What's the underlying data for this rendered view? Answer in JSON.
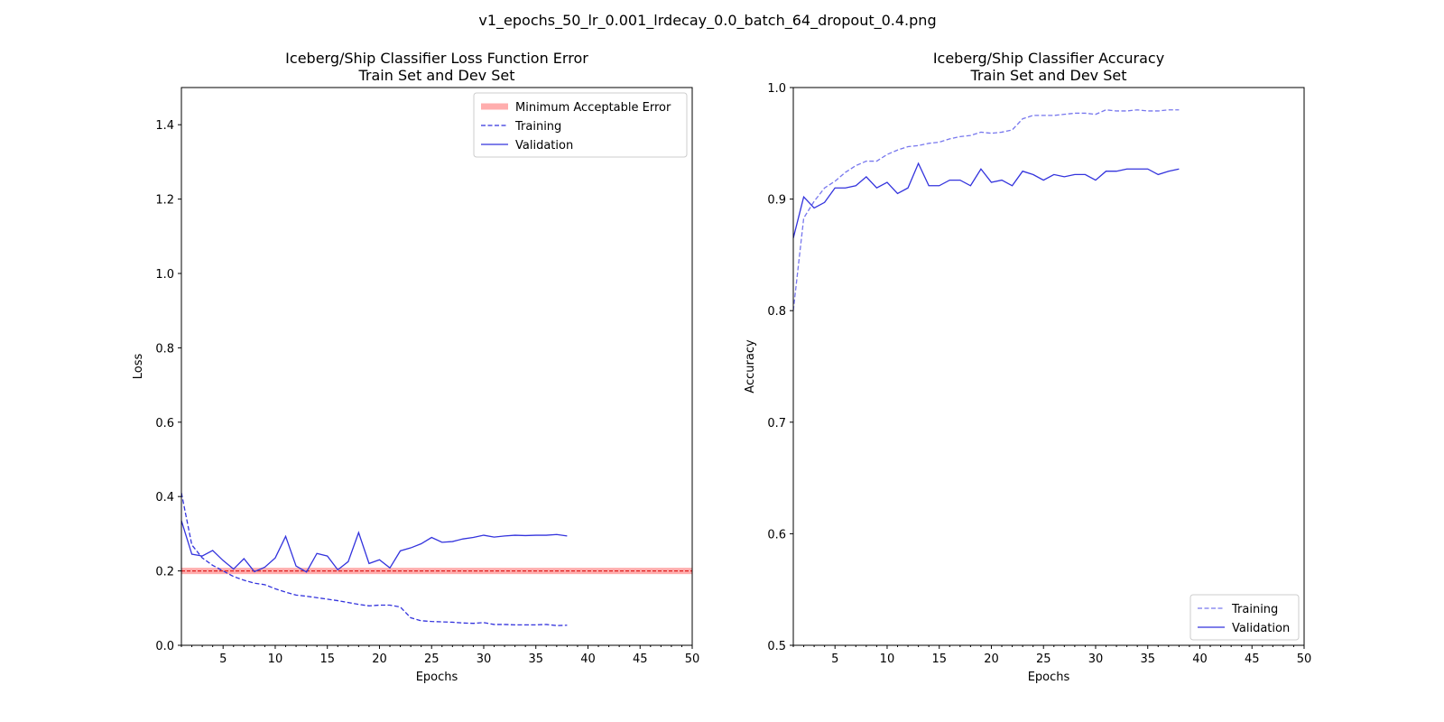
{
  "figure": {
    "suptitle": "v1_epochs_50_lr_0.001_lrdecay_0.0_batch_64_dropout_0.4.png"
  },
  "chart_data": [
    {
      "type": "line",
      "title": "Iceberg/Ship Classifier Loss Function Error",
      "subtitle": "Train Set and Dev Set",
      "xlabel": "Epochs",
      "ylabel": "Loss",
      "xlim": [
        1,
        50
      ],
      "ylim": [
        0,
        1.5
      ],
      "xticks": [
        5,
        10,
        15,
        20,
        25,
        30,
        35,
        40,
        45,
        50
      ],
      "yticks": [
        0.0,
        0.2,
        0.4,
        0.6,
        0.8,
        1.0,
        1.2,
        1.4
      ],
      "grid": false,
      "legend_position": "top-right",
      "hline": {
        "name": "Minimum Acceptable Error",
        "y": 0.2,
        "color": "#ff9999"
      },
      "x": [
        1,
        2,
        3,
        4,
        5,
        6,
        7,
        8,
        9,
        10,
        11,
        12,
        13,
        14,
        15,
        16,
        17,
        18,
        19,
        20,
        21,
        22,
        23,
        24,
        25,
        26,
        27,
        28,
        29,
        30,
        31,
        32,
        33,
        34,
        35,
        36,
        37,
        38
      ],
      "series": [
        {
          "name": "Training",
          "style": "dashed",
          "color": "#3333dd",
          "values": [
            0.41,
            0.27,
            0.235,
            0.215,
            0.2,
            0.185,
            0.175,
            0.167,
            0.163,
            0.152,
            0.143,
            0.135,
            0.132,
            0.128,
            0.124,
            0.12,
            0.115,
            0.11,
            0.106,
            0.108,
            0.108,
            0.103,
            0.074,
            0.066,
            0.064,
            0.063,
            0.062,
            0.06,
            0.059,
            0.061,
            0.056,
            0.056,
            0.055,
            0.055,
            0.055,
            0.056,
            0.053,
            0.054
          ]
        },
        {
          "name": "Validation",
          "style": "solid",
          "color": "#3333dd",
          "values": [
            0.335,
            0.245,
            0.24,
            0.255,
            0.228,
            0.205,
            0.233,
            0.198,
            0.21,
            0.235,
            0.293,
            0.213,
            0.197,
            0.247,
            0.24,
            0.203,
            0.225,
            0.303,
            0.22,
            0.23,
            0.208,
            0.254,
            0.262,
            0.273,
            0.29,
            0.277,
            0.279,
            0.286,
            0.29,
            0.296,
            0.291,
            0.294,
            0.296,
            0.295,
            0.296,
            0.296,
            0.298,
            0.294
          ]
        }
      ]
    },
    {
      "type": "line",
      "title": "Iceberg/Ship Classifier Accuracy",
      "subtitle": "Train Set and Dev Set",
      "xlabel": "Epochs",
      "ylabel": "Accuracy",
      "xlim": [
        1,
        50
      ],
      "ylim": [
        0.5,
        1.0
      ],
      "xticks": [
        5,
        10,
        15,
        20,
        25,
        30,
        35,
        40,
        45,
        50
      ],
      "yticks": [
        0.5,
        0.6,
        0.7,
        0.8,
        0.9,
        1.0
      ],
      "grid": false,
      "legend_position": "bottom-right",
      "x": [
        1,
        2,
        3,
        4,
        5,
        6,
        7,
        8,
        9,
        10,
        11,
        12,
        13,
        14,
        15,
        16,
        17,
        18,
        19,
        20,
        21,
        22,
        23,
        24,
        25,
        26,
        27,
        28,
        29,
        30,
        31,
        32,
        33,
        34,
        35,
        36,
        37,
        38
      ],
      "series": [
        {
          "name": "Training",
          "style": "dashed",
          "color": "#7777ee",
          "values": [
            0.8,
            0.883,
            0.898,
            0.91,
            0.916,
            0.924,
            0.93,
            0.934,
            0.934,
            0.94,
            0.944,
            0.947,
            0.948,
            0.95,
            0.951,
            0.954,
            0.956,
            0.957,
            0.96,
            0.959,
            0.96,
            0.962,
            0.972,
            0.975,
            0.975,
            0.975,
            0.976,
            0.977,
            0.977,
            0.976,
            0.98,
            0.979,
            0.979,
            0.98,
            0.979,
            0.979,
            0.98,
            0.98
          ]
        },
        {
          "name": "Validation",
          "style": "solid",
          "color": "#3333dd",
          "values": [
            0.865,
            0.902,
            0.892,
            0.897,
            0.91,
            0.91,
            0.912,
            0.92,
            0.91,
            0.915,
            0.905,
            0.91,
            0.932,
            0.912,
            0.912,
            0.917,
            0.917,
            0.912,
            0.927,
            0.915,
            0.917,
            0.912,
            0.925,
            0.922,
            0.917,
            0.922,
            0.92,
            0.922,
            0.922,
            0.917,
            0.925,
            0.925,
            0.927,
            0.927,
            0.927,
            0.922,
            0.925,
            0.927
          ]
        }
      ]
    }
  ]
}
